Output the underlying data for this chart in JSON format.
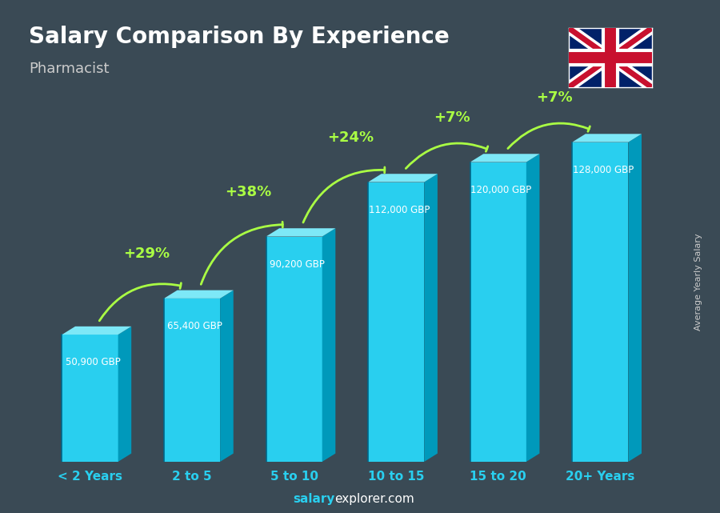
{
  "title": "Salary Comparison By Experience",
  "subtitle": "Pharmacist",
  "categories": [
    "< 2 Years",
    "2 to 5",
    "5 to 10",
    "10 to 15",
    "15 to 20",
    "20+ Years"
  ],
  "values": [
    50900,
    65400,
    90200,
    112000,
    120000,
    128000
  ],
  "salary_labels": [
    "50,900 GBP",
    "65,400 GBP",
    "90,200 GBP",
    "112,000 GBP",
    "120,000 GBP",
    "128,000 GBP"
  ],
  "pct_changes": [
    "+29%",
    "+38%",
    "+24%",
    "+7%",
    "+7%"
  ],
  "face_color": "#29cfef",
  "top_color": "#7de8f7",
  "side_color": "#0099bb",
  "bg_color": "#3a4a55",
  "pct_color": "#aaff44",
  "ylabel": "Average Yearly Salary",
  "footer_bold": "salary",
  "footer_normal": "explorer.com",
  "ylim_max": 150000
}
